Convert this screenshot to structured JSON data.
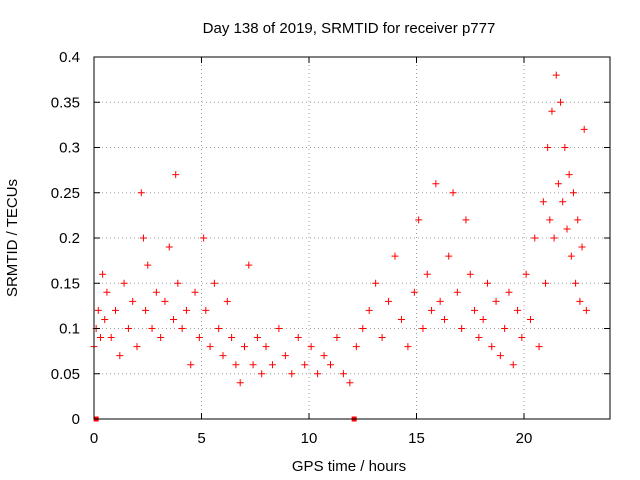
{
  "colors": {
    "points": "#ff0000",
    "axes": "#000000",
    "grid": "#a0a0a0"
  },
  "chart_data": {
    "type": "scatter",
    "title": "Day 138 of 2019, SRMTID for receiver p777",
    "xlabel": "GPS time / hours",
    "ylabel": "SRMTID / TECUs",
    "xlim": [
      0,
      24.0
    ],
    "ylim": [
      0,
      0.4
    ],
    "xticks": [
      0,
      5,
      10,
      15,
      20
    ],
    "xtick_labels": [
      "0",
      "5",
      "10",
      "15",
      "20"
    ],
    "yticks": [
      0,
      0.05,
      0.1,
      0.15,
      0.2,
      0.25,
      0.3,
      0.35,
      0.4
    ],
    "ytick_labels": [
      "0",
      "0.05",
      "0.1",
      "0.15",
      "0.2",
      "0.25",
      "0.3",
      "0.35",
      "0.4"
    ],
    "grid": true,
    "marker": "plus",
    "gap_markers_at_zero_x": [
      0.1,
      12.1
    ],
    "series": [
      {
        "name": "SRMTID",
        "x": [
          0.0,
          0.1,
          0.2,
          0.3,
          0.4,
          0.5,
          0.6,
          0.8,
          1.0,
          1.2,
          1.4,
          1.6,
          1.8,
          2.0,
          2.2,
          2.3,
          2.4,
          2.5,
          2.7,
          2.9,
          3.1,
          3.3,
          3.5,
          3.7,
          3.8,
          3.9,
          4.1,
          4.3,
          4.5,
          4.7,
          4.9,
          5.1,
          5.2,
          5.4,
          5.6,
          5.8,
          6.0,
          6.2,
          6.4,
          6.6,
          6.8,
          7.0,
          7.2,
          7.4,
          7.6,
          7.8,
          8.0,
          8.3,
          8.6,
          8.9,
          9.2,
          9.5,
          9.8,
          10.1,
          10.4,
          10.7,
          11.0,
          11.3,
          11.6,
          11.9,
          12.2,
          12.5,
          12.8,
          13.1,
          13.4,
          13.7,
          14.0,
          14.3,
          14.6,
          14.9,
          15.1,
          15.3,
          15.5,
          15.7,
          15.9,
          16.1,
          16.3,
          16.5,
          16.7,
          16.9,
          17.1,
          17.3,
          17.5,
          17.7,
          17.9,
          18.1,
          18.3,
          18.5,
          18.7,
          18.9,
          19.1,
          19.3,
          19.5,
          19.7,
          19.9,
          20.1,
          20.3,
          20.5,
          20.7,
          20.9,
          21.0,
          21.1,
          21.2,
          21.3,
          21.4,
          21.5,
          21.6,
          21.7,
          21.8,
          21.9,
          22.0,
          22.1,
          22.2,
          22.3,
          22.4,
          22.5,
          22.6,
          22.7,
          22.8,
          22.9
        ],
        "y": [
          0.08,
          0.1,
          0.12,
          0.09,
          0.16,
          0.11,
          0.14,
          0.09,
          0.12,
          0.07,
          0.15,
          0.1,
          0.13,
          0.08,
          0.25,
          0.2,
          0.12,
          0.17,
          0.1,
          0.14,
          0.09,
          0.13,
          0.19,
          0.11,
          0.27,
          0.15,
          0.1,
          0.12,
          0.06,
          0.14,
          0.09,
          0.2,
          0.12,
          0.08,
          0.15,
          0.1,
          0.07,
          0.13,
          0.09,
          0.06,
          0.04,
          0.08,
          0.17,
          0.06,
          0.09,
          0.05,
          0.08,
          0.06,
          0.1,
          0.07,
          0.05,
          0.09,
          0.06,
          0.08,
          0.05,
          0.07,
          0.06,
          0.09,
          0.05,
          0.04,
          0.08,
          0.1,
          0.12,
          0.15,
          0.09,
          0.13,
          0.18,
          0.11,
          0.08,
          0.14,
          0.22,
          0.1,
          0.16,
          0.12,
          0.26,
          0.13,
          0.11,
          0.18,
          0.25,
          0.14,
          0.1,
          0.22,
          0.16,
          0.12,
          0.09,
          0.11,
          0.15,
          0.08,
          0.13,
          0.07,
          0.1,
          0.14,
          0.06,
          0.12,
          0.09,
          0.16,
          0.11,
          0.2,
          0.08,
          0.24,
          0.15,
          0.3,
          0.22,
          0.34,
          0.2,
          0.38,
          0.26,
          0.35,
          0.24,
          0.3,
          0.21,
          0.27,
          0.18,
          0.25,
          0.15,
          0.22,
          0.13,
          0.19,
          0.32,
          0.12
        ]
      }
    ]
  }
}
